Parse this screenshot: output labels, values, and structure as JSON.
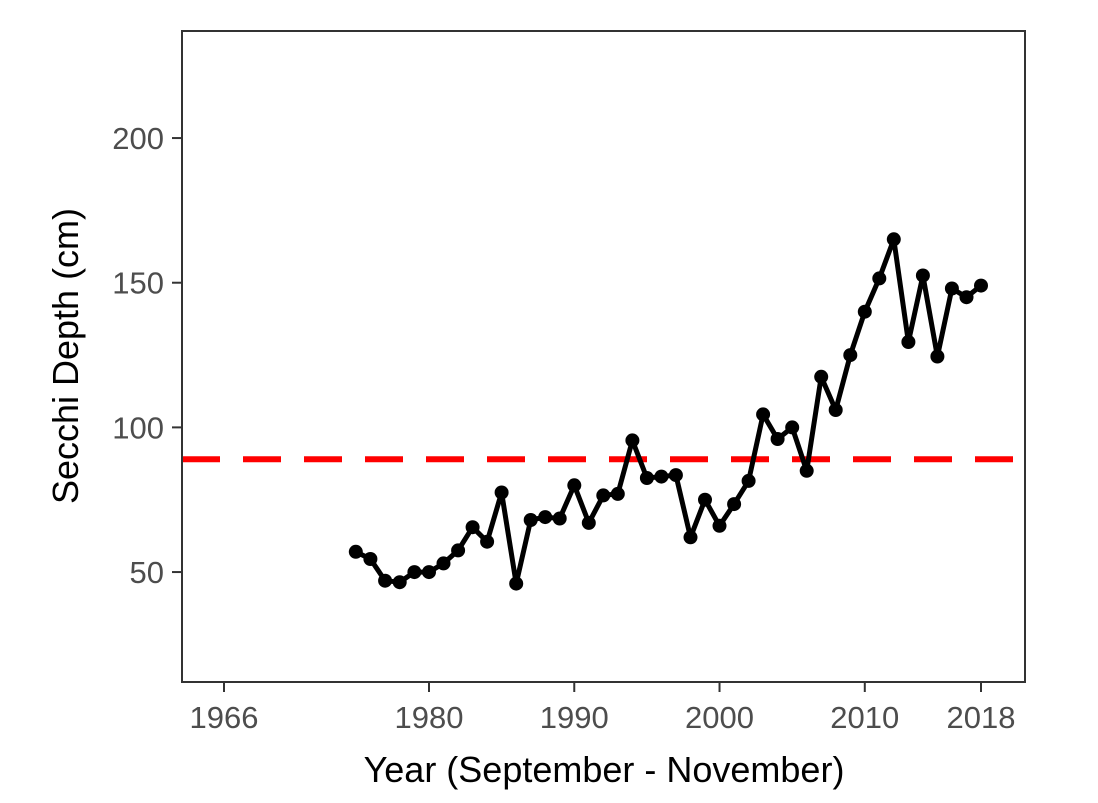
{
  "chart_data": {
    "type": "line",
    "xlabel": "Year (September - November)",
    "ylabel": "Secchi Depth (cm)",
    "xlim": [
      1963,
      1973.4
    ],
    "ylim": [
      12,
      237
    ],
    "x_ticks": [
      1966,
      1980,
      1990,
      2000,
      2010,
      2018
    ],
    "y_ticks": [
      50,
      100,
      150,
      200
    ],
    "grid": false,
    "reference_line": {
      "y": 89,
      "style": "dashed",
      "color": "#ff0000"
    },
    "series": [
      {
        "color": "#000000",
        "points": [
          [
            1975,
            57
          ],
          [
            1976,
            54.5
          ],
          [
            1977,
            47
          ],
          [
            1978,
            46.5
          ],
          [
            1979,
            50
          ],
          [
            1980,
            50
          ],
          [
            1981,
            53
          ],
          [
            1982,
            57.5
          ],
          [
            1983,
            65.5
          ],
          [
            1984,
            60.5
          ],
          [
            1985,
            77.5
          ],
          [
            1986,
            46
          ],
          [
            1987,
            68
          ],
          [
            1988,
            69
          ],
          [
            1989,
            68.5
          ],
          [
            1990,
            80
          ],
          [
            1991,
            67
          ],
          [
            1992,
            76.5
          ],
          [
            1993,
            77
          ],
          [
            1994,
            95.5
          ],
          [
            1995,
            82.5
          ],
          [
            1996,
            83
          ],
          [
            1997,
            83.5
          ],
          [
            1998,
            62
          ],
          [
            1999,
            75
          ],
          [
            2000,
            66
          ],
          [
            2001,
            73.5
          ],
          [
            2002,
            81.5
          ],
          [
            2003,
            104.5
          ],
          [
            2004,
            96
          ],
          [
            2005,
            100
          ],
          [
            2006,
            85
          ],
          [
            2007,
            117.5
          ],
          [
            2008,
            106
          ],
          [
            2009,
            125
          ],
          [
            2010,
            140
          ],
          [
            2011,
            151.5
          ],
          [
            2012,
            165
          ],
          [
            2013,
            129.5
          ],
          [
            2014,
            152.5
          ],
          [
            2015,
            124.5
          ],
          [
            2016,
            148
          ],
          [
            2017,
            145
          ],
          [
            2018,
            149
          ]
        ]
      }
    ]
  }
}
